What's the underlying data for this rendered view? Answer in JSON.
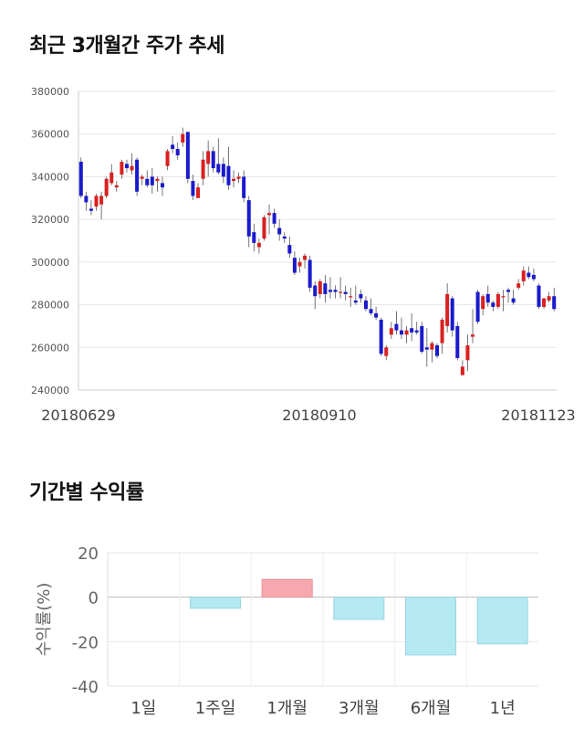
{
  "titles": {
    "price_trend": "최근 3개월간 주가 추세",
    "returns": "기간별 수익률"
  },
  "chart_data": [
    {
      "type": "candlestick",
      "title": "최근 3개월간 주가 추세",
      "x_tick_labels": [
        "20180629",
        "20180910",
        "20181123"
      ],
      "ylim": [
        240000,
        380000
      ],
      "y_ticks": [
        240000,
        260000,
        280000,
        300000,
        320000,
        340000,
        360000,
        380000
      ],
      "grid": true,
      "colors": {
        "up": "#d92020",
        "down": "#1a1acc",
        "wick": "#555555"
      },
      "candles": [
        [
          347000,
          331000,
          349000,
          330000
        ],
        [
          331000,
          328000,
          333000,
          324000
        ],
        [
          325000,
          324000,
          329000,
          322000
        ],
        [
          326000,
          331000,
          332000,
          324000
        ],
        [
          327000,
          331000,
          333000,
          320000
        ],
        [
          331000,
          339000,
          340000,
          330000
        ],
        [
          337000,
          342000,
          346000,
          336000
        ],
        [
          335000,
          336000,
          338000,
          333000
        ],
        [
          341000,
          347000,
          348000,
          339000
        ],
        [
          346000,
          344000,
          348000,
          342000
        ],
        [
          343000,
          345000,
          351000,
          341000
        ],
        [
          348000,
          333000,
          349000,
          331000
        ],
        [
          339000,
          340000,
          341000,
          336000
        ],
        [
          339000,
          336000,
          343000,
          335000
        ],
        [
          340000,
          336000,
          344000,
          332000
        ],
        [
          338000,
          339000,
          340000,
          333000
        ],
        [
          337000,
          335000,
          340000,
          331000
        ],
        [
          345000,
          352000,
          353000,
          343000
        ],
        [
          355000,
          353000,
          359000,
          351000
        ],
        [
          353000,
          350000,
          356000,
          348000
        ],
        [
          356000,
          360000,
          363000,
          354000
        ],
        [
          361000,
          339000,
          361000,
          337000
        ],
        [
          338000,
          331000,
          341000,
          329000
        ],
        [
          330000,
          335000,
          337000,
          330000
        ],
        [
          339000,
          348000,
          352000,
          336000
        ],
        [
          346000,
          352000,
          357000,
          340000
        ],
        [
          352000,
          344000,
          354000,
          342000
        ],
        [
          346000,
          342000,
          358000,
          341000
        ],
        [
          346000,
          340000,
          349000,
          337000
        ],
        [
          345000,
          336000,
          354000,
          334000
        ],
        [
          338000,
          339000,
          343000,
          335000
        ],
        [
          339000,
          340000,
          342000,
          337000
        ],
        [
          340000,
          330000,
          343000,
          328000
        ],
        [
          329000,
          312000,
          331000,
          307000
        ],
        [
          314000,
          309000,
          318000,
          305000
        ],
        [
          307000,
          309000,
          311000,
          304000
        ],
        [
          311000,
          321000,
          322000,
          310000
        ],
        [
          322000,
          323000,
          327000,
          313000
        ],
        [
          323000,
          318000,
          325000,
          316000
        ],
        [
          316000,
          313000,
          320000,
          310000
        ],
        [
          312000,
          311000,
          314000,
          309000
        ],
        [
          308000,
          304000,
          312000,
          302000
        ],
        [
          302000,
          295000,
          305000,
          294000
        ],
        [
          298000,
          300000,
          302000,
          295000
        ],
        [
          301000,
          303000,
          304000,
          297000
        ],
        [
          301000,
          288000,
          303000,
          286000
        ],
        [
          289000,
          284000,
          291000,
          278000
        ],
        [
          285000,
          291000,
          292000,
          283000
        ],
        [
          290000,
          285000,
          294000,
          281000
        ],
        [
          287000,
          286000,
          293000,
          283000
        ],
        [
          287000,
          286000,
          289000,
          283000
        ],
        [
          286000,
          286000,
          293000,
          283000
        ],
        [
          286000,
          285000,
          289000,
          282000
        ],
        [
          284000,
          284000,
          288000,
          279000
        ],
        [
          282000,
          281000,
          289000,
          280000
        ],
        [
          285000,
          283000,
          287000,
          281000
        ],
        [
          282000,
          278000,
          284000,
          277000
        ],
        [
          278000,
          276000,
          283000,
          275000
        ],
        [
          276000,
          274000,
          279000,
          273000
        ],
        [
          273000,
          257000,
          274000,
          256000
        ],
        [
          256000,
          260000,
          261000,
          254000
        ],
        [
          266000,
          269000,
          272000,
          264000
        ],
        [
          271000,
          268000,
          277000,
          266000
        ],
        [
          268000,
          266000,
          274000,
          264000
        ],
        [
          266000,
          268000,
          270000,
          262000
        ],
        [
          269000,
          267000,
          276000,
          263000
        ],
        [
          268000,
          267000,
          272000,
          266000
        ],
        [
          270000,
          258000,
          272000,
          257000
        ],
        [
          260000,
          259000,
          269000,
          251000
        ],
        [
          259000,
          262000,
          263000,
          253000
        ],
        [
          261000,
          256000,
          262000,
          255000
        ],
        [
          262000,
          273000,
          274000,
          257000
        ],
        [
          270000,
          285000,
          290000,
          267000
        ],
        [
          283000,
          268000,
          284000,
          265000
        ],
        [
          270000,
          255000,
          272000,
          254000
        ],
        [
          247000,
          251000,
          254000,
          247000
        ],
        [
          254000,
          261000,
          266000,
          249000
        ],
        [
          265000,
          266000,
          278000,
          262000
        ],
        [
          286000,
          272000,
          287000,
          271000
        ],
        [
          278000,
          284000,
          285000,
          275000
        ],
        [
          285000,
          281000,
          289000,
          279000
        ],
        [
          281000,
          279000,
          282000,
          277000
        ],
        [
          279000,
          285000,
          286000,
          278000
        ],
        [
          284000,
          284000,
          287000,
          277000
        ],
        [
          287000,
          286000,
          288000,
          281000
        ],
        [
          283000,
          281000,
          287000,
          280000
        ],
        [
          288000,
          290000,
          292000,
          287000
        ],
        [
          291000,
          296000,
          298000,
          289000
        ],
        [
          295000,
          293000,
          298000,
          292000
        ],
        [
          294000,
          292000,
          297000,
          291000
        ],
        [
          289000,
          279000,
          290000,
          278000
        ],
        [
          279000,
          283000,
          283000,
          278000
        ],
        [
          282000,
          284000,
          286000,
          281000
        ],
        [
          284000,
          278000,
          288000,
          277000
        ]
      ]
    },
    {
      "type": "bar",
      "title": "기간별 수익률",
      "categories": [
        "1일",
        "1주일",
        "1개월",
        "3개월",
        "6개월",
        "1년"
      ],
      "values": [
        0,
        -5,
        8,
        -10,
        -26,
        -21
      ],
      "ylabel": "수익률(%)",
      "ylim": [
        -40,
        20
      ],
      "y_ticks": [
        20,
        0,
        -20,
        -40
      ],
      "grid": true,
      "colors": {
        "positive_fill": "#f7a8ae",
        "positive_stroke": "#e89099",
        "negative_fill": "#b4e9f2",
        "negative_stroke": "#9cd6e0"
      }
    }
  ]
}
